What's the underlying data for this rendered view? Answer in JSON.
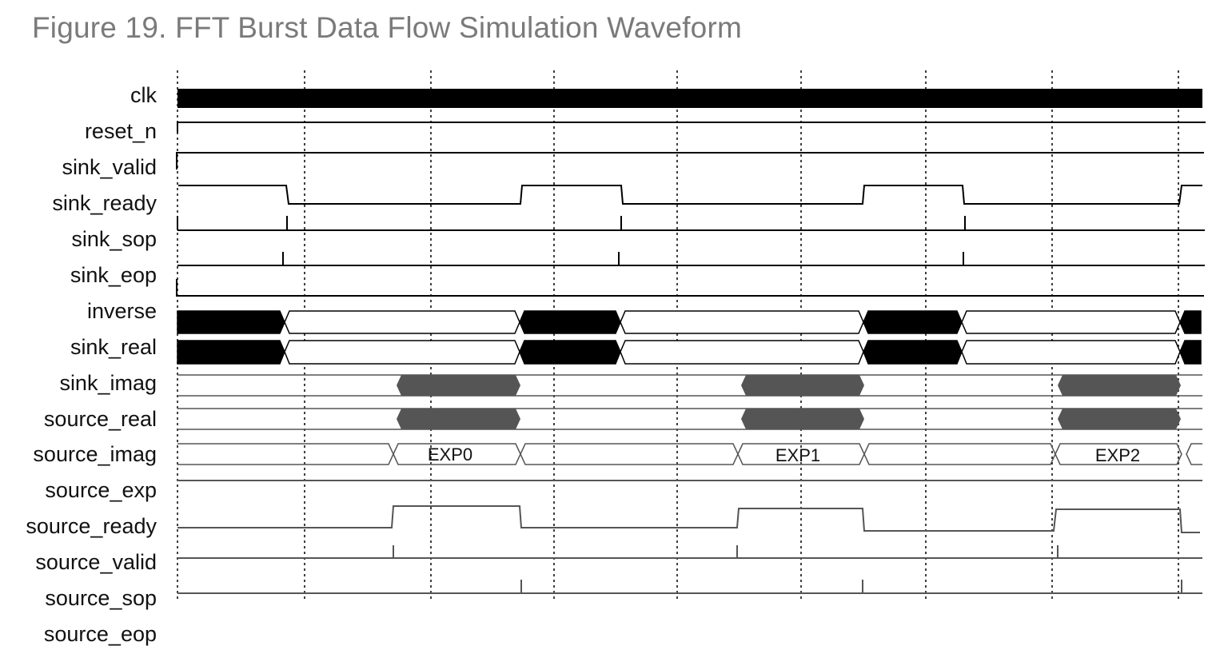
{
  "title": "Figure 19. FFT Burst Data Flow Simulation Waveform",
  "colors": {
    "ink": "#000000",
    "trace_gray": "#555555",
    "title": "#7a7a7a"
  },
  "signals": [
    "clk",
    "reset_n",
    "sink_valid",
    "sink_ready",
    "sink_sop",
    "sink_eop",
    "inverse",
    "sink_real",
    "sink_imag",
    "source_real",
    "source_imag",
    "source_exp",
    "source_ready",
    "source_valid",
    "source_sop",
    "source_eop"
  ],
  "bus_values": [
    "EXP0",
    "EXP1",
    "EXP2"
  ]
}
